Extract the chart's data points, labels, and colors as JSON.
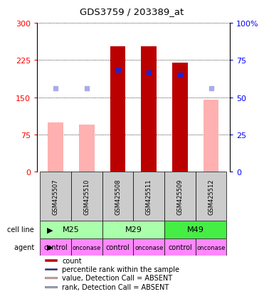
{
  "title": "GDS3759 / 203389_at",
  "samples": [
    "GSM425507",
    "GSM425510",
    "GSM425508",
    "GSM425511",
    "GSM425509",
    "GSM425512"
  ],
  "count_values": [
    null,
    null,
    253,
    253,
    220,
    null
  ],
  "count_absent": [
    100,
    95,
    null,
    null,
    null,
    145
  ],
  "rank_values": [
    null,
    null,
    205,
    200,
    195,
    null
  ],
  "rank_absent": [
    168,
    168,
    null,
    null,
    null,
    168
  ],
  "ylim": [
    0,
    300
  ],
  "yticks": [
    0,
    75,
    150,
    225,
    300
  ],
  "ytick_labels_left": [
    "0",
    "75",
    "150",
    "225",
    "300"
  ],
  "ytick_labels_right": [
    "0",
    "25",
    "50",
    "75",
    "100%"
  ],
  "cell_line_groups": [
    {
      "label": "M25",
      "start": 0,
      "end": 2,
      "color": "#AAFFAA"
    },
    {
      "label": "M29",
      "start": 2,
      "end": 4,
      "color": "#AAFFAA"
    },
    {
      "label": "M49",
      "start": 4,
      "end": 6,
      "color": "#44EE44"
    }
  ],
  "agents": [
    "control",
    "onconase",
    "control",
    "onconase",
    "control",
    "onconase"
  ],
  "agent_color": "#FF88FF",
  "bar_width": 0.5,
  "count_color": "#BB0000",
  "count_absent_color": "#FFB0B0",
  "rank_color": "#2222CC",
  "rank_absent_color": "#AAAAEE",
  "bg_color": "#FFFFFF",
  "xtick_bg": "#CCCCCC",
  "legend_items": [
    {
      "color": "#BB0000",
      "label": "count"
    },
    {
      "color": "#2222CC",
      "label": "percentile rank within the sample"
    },
    {
      "color": "#FFB0B0",
      "label": "value, Detection Call = ABSENT"
    },
    {
      "color": "#AAAAEE",
      "label": "rank, Detection Call = ABSENT"
    }
  ]
}
